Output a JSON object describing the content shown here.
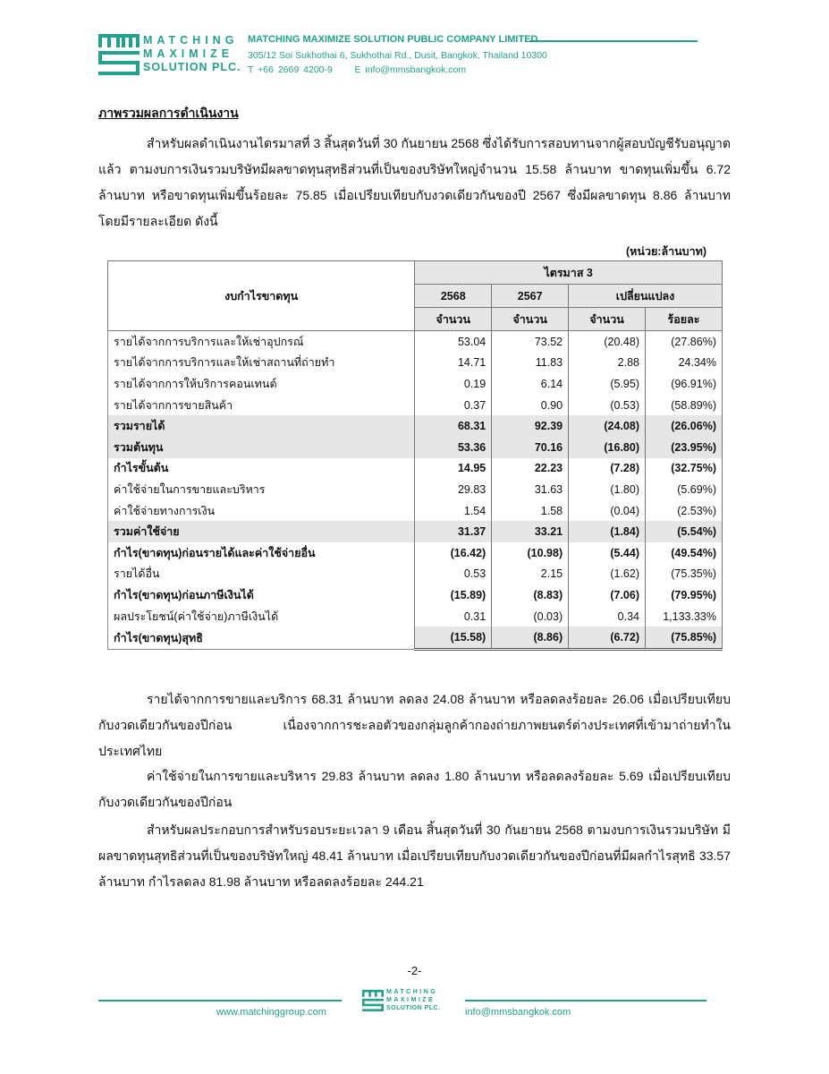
{
  "header": {
    "logo_lines": [
      "MATCHING",
      "MAXIMIZE",
      "SOLUTION PLC."
    ],
    "company_name": "MATCHING MAXIMIZE SOLUTION PUBLIC COMPANY LIMITED",
    "address": "305/12 Soi Sukhothai 6, Sukhothai Rd., Dusit, Bangkok, Thailand 10300",
    "phone": "T +66 2669 4200-9",
    "email": "E info@mmsbangkok.com",
    "brand_color": "#22a28b"
  },
  "heading": "ภาพรวมผลการดำเนินงาน",
  "intro": "สำหรับผลดำเนินงานไตรมาสที่ 3 สิ้นสุดวันที่ 30 กันยายน 2568 ซึ่งได้รับการสอบทานจากผู้สอบบัญชีรับอนุญาต แล้ว ตามงบการเงินรวมบริษัทมีผลขาดทุนสุทธิส่วนที่เป็นของบริษัทใหญ่จำนวน 15.58 ล้านบาท ขาดทุนเพิ่มขึ้น 6.72 ล้านบาท หรือขาดทุนเพิ่มขึ้นร้อยละ 75.85 เมื่อเปรียบเทียบกับงวดเดียวกันของปี 2567 ซึ่งมีผลขาดทุน 8.86 ล้านบาท โดยมีรายละเอียด ดังนี้",
  "table": {
    "unit": "(หน่วย:ล้านบาท)",
    "row_header": "งบกำไรขาดทุน",
    "period": "ไตรมาส 3",
    "year_2568": "2568",
    "year_2567": "2567",
    "change": "เปลี่ยนแปลง",
    "amount": "จำนวน",
    "percent": "ร้อยละ",
    "rows": [
      {
        "label": "รายได้จากการบริการและให้เช่าอุปกรณ์",
        "v2568": "53.04",
        "v2567": "73.52",
        "chg": "(20.48)",
        "pct": "(27.86%)",
        "style": ""
      },
      {
        "label": "รายได้จากการบริการและให้เช่าสถานที่ถ่ายทำ",
        "v2568": "14.71",
        "v2567": "11.83",
        "chg": "2.88",
        "pct": "24.34%",
        "style": ""
      },
      {
        "label": "รายได้จากการให้บริการคอนเทนต์",
        "v2568": "0.19",
        "v2567": "6.14",
        "chg": "(5.95)",
        "pct": "(96.91%)",
        "style": ""
      },
      {
        "label": "รายได้จากการขายสินค้า",
        "v2568": "0.37",
        "v2567": "0.90",
        "chg": "(0.53)",
        "pct": "(58.89%)",
        "style": ""
      },
      {
        "label": "รวมรายได้",
        "v2568": "68.31",
        "v2567": "92.39",
        "chg": "(24.08)",
        "pct": "(26.06%)",
        "style": "b s"
      },
      {
        "label": "รวมต้นทุน",
        "v2568": "53.36",
        "v2567": "70.16",
        "chg": "(16.80)",
        "pct": "(23.95%)",
        "style": "b s"
      },
      {
        "label": "กำไรขั้นต้น",
        "v2568": "14.95",
        "v2567": "22.23",
        "chg": "(7.28)",
        "pct": "(32.75%)",
        "style": "b"
      },
      {
        "label": "ค่าใช้จ่ายในการขายและบริหาร",
        "v2568": "29.83",
        "v2567": "31.63",
        "chg": "(1.80)",
        "pct": "(5.69%)",
        "style": ""
      },
      {
        "label": "ค่าใช้จ่ายทางการเงิน",
        "v2568": "1.54",
        "v2567": "1.58",
        "chg": "(0.04)",
        "pct": "(2.53%)",
        "style": ""
      },
      {
        "label": "รวมค่าใช้จ่าย",
        "v2568": "31.37",
        "v2567": "33.21",
        "chg": "(1.84)",
        "pct": "(5.54%)",
        "style": "b s"
      },
      {
        "label": "กำไร(ขาดทุน)ก่อนรายได้และค่าใช้จ่ายอื่น",
        "v2568": "(16.42)",
        "v2567": "(10.98)",
        "chg": "(5.44)",
        "pct": "(49.54%)",
        "style": "b"
      },
      {
        "label": "รายได้อื่น",
        "v2568": "0.53",
        "v2567": "2.15",
        "chg": "(1.62)",
        "pct": "(75.35%)",
        "style": ""
      },
      {
        "label": "กำไร(ขาดทุน)ก่อนภาษีเงินได้",
        "v2568": "(15.89)",
        "v2567": "(8.83)",
        "chg": "(7.06)",
        "pct": "(79.95%)",
        "style": "b"
      },
      {
        "label": "ผลประโยชน์(ค่าใช้จ่าย)ภาษีเงินได้",
        "v2568": "0.31",
        "v2567": "(0.03)",
        "chg": "0.34",
        "pct": "1,133.33%",
        "style": ""
      },
      {
        "label": "กำไร(ขาดทุน)สุทธิ",
        "v2568": "(15.58)",
        "v2567": "(8.86)",
        "chg": "(6.72)",
        "pct": "(75.85%)",
        "style": "b s2 last"
      }
    ]
  },
  "paragraphs": [
    "รายได้จากการขายและบริการ 68.31 ล้านบาท ลดลง 24.08 ล้านบาท หรือลดลงร้อยละ 26.06 เมื่อเปรียบเทียบกับงวดเดียวกันของปีก่อน เนื่องจากการชะลอตัวของกลุ่มลูกค้ากองถ่ายภาพยนตร์ต่างประเทศที่เข้ามาถ่ายทำในประเทศไทย",
    "ค่าใช้จ่ายในการขายและบริหาร 29.83 ล้านบาท ลดลง 1.80 ล้านบาท หรือลดลงร้อยละ 5.69 เมื่อเปรียบเทียบกับงวดเดียวกันของปีก่อน",
    "สำหรับผลประกอบการสำหรับรอบระยะเวลา 9 เดือน สิ้นสุดวันที่ 30 กันยายน 2568 ตามงบการเงินรวมบริษัท มีผลขาดทุนสุทธิส่วนที่เป็นของบริษัทใหญ่ 48.41 ล้านบาท เมื่อเปรียบเทียบกับงวดเดียวกันของปีก่อนที่มีผลกำไรสุทธิ 33.57 ล้านบาท กำไรลดลง 81.98 ล้านบาท หรือลดลงร้อยละ 244.21"
  ],
  "footer": {
    "page_number": "-2-",
    "website": "www.matchinggroup.com",
    "email": "info@mmsbangkok.com"
  }
}
